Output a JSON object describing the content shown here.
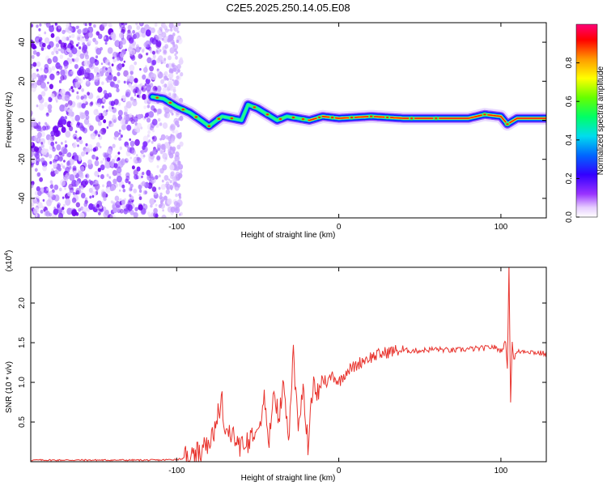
{
  "title": "C2E5.2025.250.14.05.E08",
  "chart_data": [
    {
      "type": "heatmap",
      "name": "spectrogram",
      "xlabel": "Height of straight line (km)",
      "ylabel": "Frequency (Hz)",
      "xlim": [
        -190,
        128
      ],
      "ylim": [
        -50,
        50
      ],
      "xticks": [
        -100,
        0,
        100
      ],
      "yticks": [
        -40,
        -20,
        0,
        20,
        40
      ],
      "xtick_labels": [
        "-100",
        "0",
        "100"
      ],
      "ytick_labels": [
        "-40",
        "-20",
        "0",
        "20",
        "40"
      ],
      "noise_region_x": [
        -190,
        -97
      ],
      "signal_trace": {
        "x": [
          -115,
          -108,
          -100,
          -92,
          -85,
          -80,
          -72,
          -66,
          -60,
          -56,
          -50,
          -44,
          -38,
          -32,
          -25,
          -18,
          -10,
          0,
          20,
          40,
          60,
          80,
          90,
          100,
          104,
          110,
          128
        ],
        "y": [
          12,
          11,
          7,
          4,
          0,
          -3,
          2,
          1,
          0,
          8,
          6,
          3,
          0,
          2,
          1,
          0,
          2,
          1,
          2,
          1,
          1,
          1,
          3,
          2,
          -2,
          1,
          1
        ]
      },
      "colorbar": {
        "label": "Normalized spectral amplitude",
        "range": [
          0,
          1
        ],
        "ticks": [
          0.0,
          0.2,
          0.4,
          0.6,
          0.8
        ],
        "tick_labels": [
          "0.0",
          "0.2",
          "0.4",
          "0.6",
          "0.8"
        ],
        "colors": [
          "#ffffff",
          "#cc99ff",
          "#8800ff",
          "#0000ff",
          "#00aaff",
          "#00ffcc",
          "#00ff00",
          "#aaff00",
          "#ffff00",
          "#ffaa00",
          "#ff0000",
          "#ff0088"
        ]
      }
    },
    {
      "type": "line",
      "name": "snr",
      "xlabel": "Height of straight line (km)",
      "ylabel": "SNR (10 * v/v)",
      "scale_label": "(x10",
      "scale_exp": "4",
      "scale_close": ")",
      "xlim": [
        -190,
        128
      ],
      "ylim": [
        0,
        2.45
      ],
      "xticks": [
        -100,
        0,
        100
      ],
      "yticks": [
        0.5,
        1.0,
        1.5,
        2.0
      ],
      "xtick_labels": [
        "-100",
        "0",
        "100"
      ],
      "ytick_labels": [
        "0.5",
        "1.0",
        "1.5",
        "2.0"
      ],
      "color": "#e8332d",
      "series": [
        {
          "name": "SNR",
          "x": [
            -190,
            -140,
            -110,
            -100,
            -92,
            -85,
            -80,
            -75,
            -72,
            -70,
            -67,
            -63,
            -60,
            -55,
            -50,
            -46,
            -43,
            -40,
            -37,
            -34,
            -31,
            -28,
            -25,
            -22,
            -19,
            -16,
            -13,
            -10,
            -7,
            -4,
            0,
            5,
            10,
            15,
            20,
            25,
            30,
            35,
            40,
            50,
            60,
            70,
            80,
            90,
            95,
            100,
            103,
            104,
            105,
            106,
            107,
            108,
            110,
            115,
            120,
            128
          ],
          "y": [
            0.02,
            0.02,
            0.02,
            0.03,
            0.05,
            0.1,
            0.2,
            0.5,
            0.8,
            0.3,
            0.35,
            0.28,
            0.2,
            0.3,
            0.5,
            0.75,
            0.25,
            0.95,
            0.45,
            1.1,
            0.25,
            1.45,
            0.3,
            1.0,
            0.2,
            0.95,
            0.85,
            1.05,
            1.0,
            1.1,
            1.0,
            1.15,
            1.2,
            1.28,
            1.32,
            1.35,
            1.38,
            1.4,
            1.4,
            1.4,
            1.42,
            1.4,
            1.42,
            1.43,
            1.45,
            1.4,
            1.5,
            1.2,
            2.45,
            0.78,
            1.5,
            1.3,
            1.38,
            1.4,
            1.38,
            1.36
          ]
        }
      ]
    }
  ]
}
